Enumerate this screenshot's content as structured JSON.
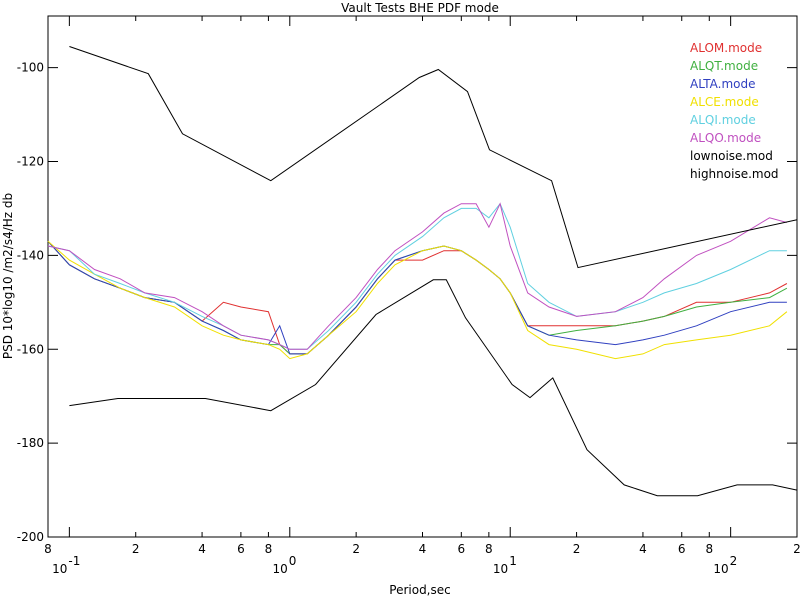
{
  "chart_data": {
    "type": "line",
    "title": "Vault Tests BHE PDF mode",
    "xlabel": "Period,sec",
    "ylabel": "PSD 10*log10 /m2/s4/Hz db",
    "xscale": "log",
    "xlim": [
      0.08,
      200
    ],
    "ylim": [
      -200,
      -89
    ],
    "xticks": [
      {
        "value": 0.08,
        "label": "8"
      },
      {
        "value": 0.1,
        "label": "10",
        "exponent": "-1"
      },
      {
        "value": 0.2,
        "label": "2"
      },
      {
        "value": 0.4,
        "label": "4"
      },
      {
        "value": 0.6,
        "label": "6"
      },
      {
        "value": 0.8,
        "label": "8"
      },
      {
        "value": 1,
        "label": "10",
        "exponent": "0"
      },
      {
        "value": 2,
        "label": "2"
      },
      {
        "value": 4,
        "label": "4"
      },
      {
        "value": 6,
        "label": "6"
      },
      {
        "value": 8,
        "label": "8"
      },
      {
        "value": 10,
        "label": "10",
        "exponent": "1"
      },
      {
        "value": 20,
        "label": "2"
      },
      {
        "value": 40,
        "label": "4"
      },
      {
        "value": 60,
        "label": "6"
      },
      {
        "value": 80,
        "label": "8"
      },
      {
        "value": 100,
        "label": "10",
        "exponent": "2"
      },
      {
        "value": 200,
        "label": "2"
      }
    ],
    "yticks": [
      -100,
      -120,
      -140,
      -160,
      -180,
      -200
    ],
    "legend": "top-right",
    "series": [
      {
        "name": "ALOM.mode",
        "color": "#e03030",
        "x": [
          0.08,
          0.1,
          0.13,
          0.17,
          0.22,
          0.3,
          0.4,
          0.5,
          0.6,
          0.8,
          0.9,
          1.0,
          1.2,
          1.5,
          2,
          2.5,
          3,
          4,
          5,
          6,
          7,
          8,
          9,
          10,
          12,
          15,
          20,
          30,
          40,
          50,
          70,
          100,
          150,
          180
        ],
        "values": [
          -137,
          -142,
          -145,
          -147,
          -149,
          -150,
          -154,
          -150,
          -151,
          -152,
          -159,
          -161,
          -161,
          -157,
          -151,
          -145,
          -141,
          -141,
          -139,
          -139,
          -141,
          -143,
          -145,
          -148,
          -155,
          -155,
          -155,
          -155,
          -154,
          -153,
          -150,
          -150,
          -148,
          -146
        ]
      },
      {
        "name": "ALQT.mode",
        "color": "#40b040",
        "x": [
          0.08,
          0.1,
          0.13,
          0.17,
          0.22,
          0.3,
          0.4,
          0.5,
          0.6,
          0.8,
          0.9,
          1.0,
          1.2,
          1.5,
          2,
          2.5,
          3,
          4,
          5,
          6,
          7,
          8,
          9,
          10,
          12,
          15,
          20,
          30,
          40,
          50,
          70,
          100,
          150,
          180
        ],
        "values": [
          -137,
          -142,
          -145,
          -147,
          -149,
          -150,
          -154,
          -156,
          -158,
          -159,
          -159,
          -161,
          -161,
          -157,
          -151,
          -145,
          -141,
          -139,
          -138,
          -139,
          -141,
          -143,
          -145,
          -148,
          -155,
          -157,
          -156,
          -155,
          -154,
          -153,
          -151,
          -150,
          -149,
          -147
        ]
      },
      {
        "name": "ALTA.mode",
        "color": "#3040c0",
        "x": [
          0.08,
          0.1,
          0.13,
          0.17,
          0.22,
          0.3,
          0.4,
          0.5,
          0.6,
          0.8,
          0.9,
          1.0,
          1.2,
          1.5,
          2,
          2.5,
          3,
          4,
          5,
          6,
          7,
          8,
          9,
          10,
          12,
          15,
          20,
          30,
          40,
          50,
          70,
          100,
          150,
          180
        ],
        "values": [
          -137,
          -142,
          -145,
          -147,
          -149,
          -150,
          -154,
          -156,
          -158,
          -159,
          -155,
          -161,
          -161,
          -157,
          -151,
          -145,
          -141,
          -139,
          -138,
          -139,
          -141,
          -143,
          -145,
          -148,
          -155,
          -157,
          -158,
          -159,
          -158,
          -157,
          -155,
          -152,
          -150,
          -150
        ]
      },
      {
        "name": "ALCE.mode",
        "color": "#f0e000",
        "x": [
          0.08,
          0.1,
          0.13,
          0.17,
          0.22,
          0.3,
          0.4,
          0.5,
          0.6,
          0.8,
          0.9,
          1.0,
          1.2,
          1.5,
          2,
          2.5,
          3,
          4,
          5,
          6,
          7,
          8,
          9,
          10,
          12,
          15,
          20,
          30,
          40,
          50,
          70,
          100,
          150,
          180
        ],
        "values": [
          -137,
          -141,
          -144,
          -147,
          -149,
          -151,
          -155,
          -157,
          -158,
          -159,
          -160,
          -162,
          -161,
          -157,
          -152,
          -146,
          -142,
          -139,
          -138,
          -139,
          -141,
          -143,
          -145,
          -148,
          -156,
          -159,
          -160,
          -162,
          -161,
          -159,
          -158,
          -157,
          -155,
          -152
        ]
      },
      {
        "name": "ALQI.mode",
        "color": "#60d0e0",
        "x": [
          0.08,
          0.1,
          0.13,
          0.17,
          0.22,
          0.3,
          0.4,
          0.5,
          0.6,
          0.8,
          0.9,
          1.0,
          1.2,
          1.5,
          2,
          2.5,
          3,
          4,
          5,
          6,
          7,
          8,
          9,
          10,
          12,
          15,
          20,
          30,
          40,
          50,
          70,
          100,
          150,
          180
        ],
        "values": [
          -138,
          -139,
          -144,
          -146,
          -148,
          -150,
          -153,
          -155,
          -157,
          -158,
          -159,
          -160,
          -160,
          -156,
          -150,
          -144,
          -140,
          -136,
          -132,
          -130,
          -130,
          -132,
          -129,
          -134,
          -146,
          -150,
          -153,
          -152,
          -150,
          -148,
          -146,
          -143,
          -139,
          -139
        ]
      },
      {
        "name": "ALQO.mode",
        "color": "#c050c0",
        "x": [
          0.08,
          0.1,
          0.13,
          0.17,
          0.22,
          0.3,
          0.4,
          0.5,
          0.6,
          0.8,
          0.9,
          1.0,
          1.2,
          1.5,
          2,
          2.5,
          3,
          4,
          5,
          6,
          7,
          8,
          9,
          10,
          12,
          15,
          20,
          30,
          40,
          50,
          70,
          100,
          150,
          180
        ],
        "values": [
          -138,
          -139,
          -143,
          -145,
          -148,
          -149,
          -152,
          -155,
          -157,
          -158,
          -159,
          -160,
          -160,
          -155,
          -149,
          -143,
          -139,
          -135,
          -131,
          -129,
          -129,
          -134,
          -129,
          -138,
          -148,
          -151,
          -153,
          -152,
          -149,
          -145,
          -140,
          -137,
          -132,
          -133
        ]
      },
      {
        "name": "lownoise.mod",
        "color": "#000000",
        "x": [
          0.1,
          0.166,
          0.414,
          0.82,
          1.31,
          2.46,
          4.48,
          5.13,
          6.27,
          10.2,
          12.3,
          15.6,
          22.3,
          32.9,
          46.5,
          70.8,
          107,
          155,
          200
        ],
        "values": [
          -172,
          -170.5,
          -170.5,
          -173.1,
          -167.5,
          -152.6,
          -145.2,
          -145.2,
          -153.3,
          -167.5,
          -170.3,
          -166.1,
          -181.4,
          -188.9,
          -191.2,
          -191.2,
          -188.9,
          -188.9,
          -190
        ]
      },
      {
        "name": "highnoise.mod",
        "color": "#000000",
        "x": [
          0.1,
          0.228,
          0.326,
          0.82,
          3.87,
          4.72,
          6.4,
          8.05,
          15.4,
          20.3,
          200
        ],
        "values": [
          -95.5,
          -101.3,
          -114.1,
          -124.1,
          -102.1,
          -100.4,
          -105.1,
          -117.5,
          -124.1,
          -142.6,
          -132.4
        ]
      }
    ]
  }
}
